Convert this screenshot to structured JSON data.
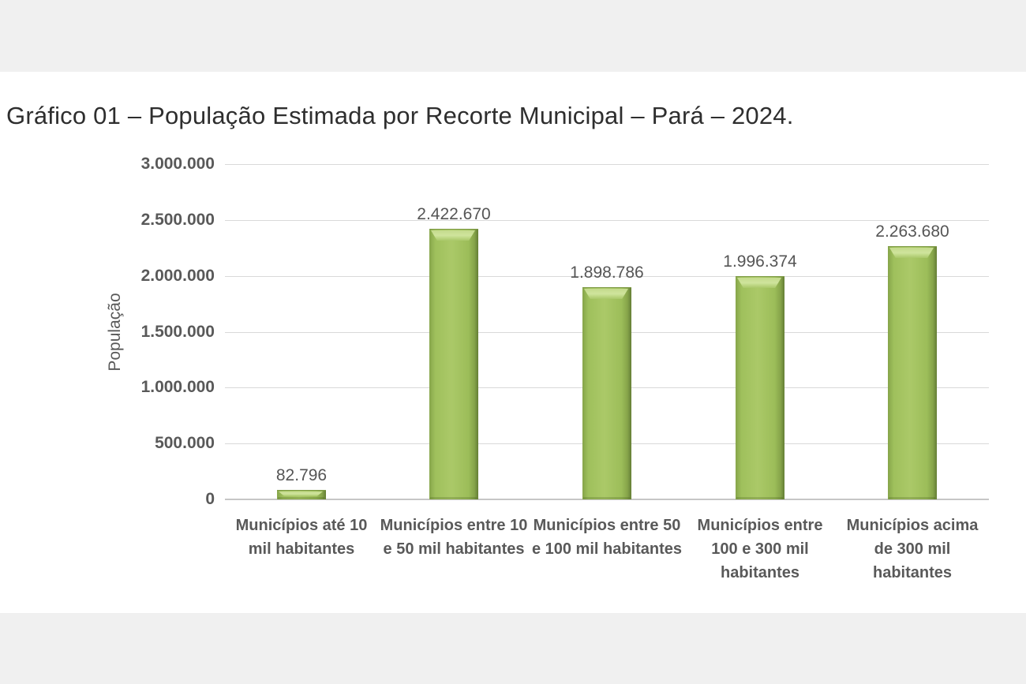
{
  "chart_data": {
    "type": "bar",
    "title": "Gráfico 01 – População Estimada por Recorte Municipal – Pará – 2024.",
    "xlabel": "",
    "ylabel": "População",
    "categories": [
      "Municípios até 10 mil habitantes",
      "Municípios entre 10 e 50 mil habitantes",
      "Municípios entre 50 e 100 mil habitantes",
      "Municípios entre 100 e 300 mil habitantes",
      "Municípios acima de 300 mil habitantes"
    ],
    "values": [
      82796,
      2422670,
      1898786,
      1996374,
      2263680
    ],
    "value_labels": [
      "82.796",
      "2.422.670",
      "1.898.786",
      "1.996.374",
      "2.263.680"
    ],
    "ylim": [
      0,
      3000000
    ],
    "ytick_interval": 500000,
    "ytick_labels": [
      "0",
      "500.000",
      "1.000.000",
      "1.500.000",
      "2.000.000",
      "2.500.000",
      "3.000.000"
    ],
    "grid": true,
    "legend": "none",
    "bar_color": "#9cbd59",
    "bar_highlight_color": "#cfe49c",
    "bar_edge_color": "#647e35",
    "gridline_color": "#d9d9d9",
    "axis_line_color": "#c6c6c6",
    "label_text_color": "#595959",
    "title_text_color": "#2e2e2e",
    "page_background": "#ffffff",
    "outer_background": "#f0f0f0"
  }
}
